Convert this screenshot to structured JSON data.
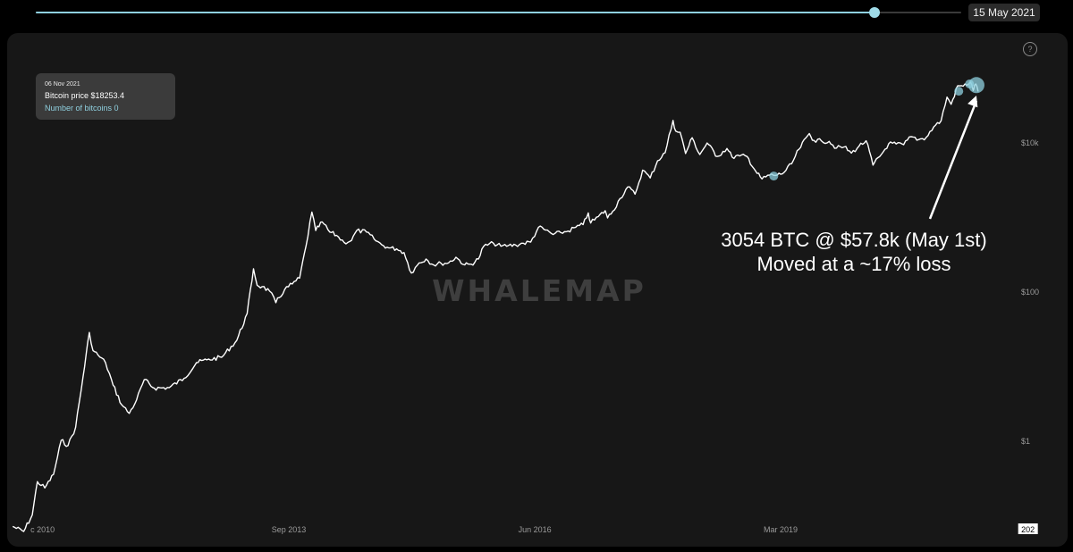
{
  "timeline": {
    "progress": 0.906,
    "selected_date": "15 May 2021"
  },
  "help_label": "?",
  "tooltip": {
    "date": "06 Nov 2021",
    "price_text": "Bitcoin price $18253.4",
    "count_text": "Number of bitcoins 0"
  },
  "colors": {
    "page_background": "#000000",
    "panel_background": "#171717",
    "price_line": "#ffffff",
    "accent": "#8fd0df",
    "watermark": "#3e3e3e",
    "tick_label": "#9a9a9a"
  },
  "chart_data": {
    "type": "line",
    "title": "",
    "xlabel": "",
    "ylabel": "",
    "y_scale": "log",
    "watermark": "WHALEMAP",
    "x_ticks": [
      {
        "label": "c 2010",
        "date": "2010-12-01"
      },
      {
        "label": "Sep 2013",
        "date": "2013-09-01"
      },
      {
        "label": "Jun 2016",
        "date": "2016-06-01"
      },
      {
        "label": "Mar 2019",
        "date": "2019-03-01"
      },
      {
        "label": "202",
        "date": "2021-12-01",
        "boxed": true
      }
    ],
    "y_ticks": [
      {
        "label": "$10k",
        "value": 10000
      },
      {
        "label": "$100",
        "value": 100
      },
      {
        "label": "$1",
        "value": 1
      }
    ],
    "series": [
      {
        "points": [
          [
            "2010-08-01",
            0.07
          ],
          [
            "2010-09-15",
            0.06
          ],
          [
            "2010-10-20",
            0.1
          ],
          [
            "2010-11-10",
            0.28
          ],
          [
            "2010-12-10",
            0.23
          ],
          [
            "2011-01-15",
            0.35
          ],
          [
            "2011-02-15",
            1.0
          ],
          [
            "2011-03-15",
            0.85
          ],
          [
            "2011-04-15",
            1.5
          ],
          [
            "2011-05-15",
            7
          ],
          [
            "2011-06-10",
            28
          ],
          [
            "2011-06-25",
            16
          ],
          [
            "2011-07-15",
            14
          ],
          [
            "2011-08-15",
            11
          ],
          [
            "2011-09-15",
            5.5
          ],
          [
            "2011-10-20",
            3.0
          ],
          [
            "2011-11-20",
            2.3
          ],
          [
            "2011-12-20",
            3.5
          ],
          [
            "2012-01-20",
            6.5
          ],
          [
            "2012-03-01",
            5
          ],
          [
            "2012-05-01",
            5.1
          ],
          [
            "2012-07-01",
            6.8
          ],
          [
            "2012-08-20",
            11
          ],
          [
            "2012-10-01",
            12
          ],
          [
            "2012-12-01",
            13
          ],
          [
            "2013-02-01",
            22
          ],
          [
            "2013-03-15",
            50
          ],
          [
            "2013-04-10",
            200
          ],
          [
            "2013-04-25",
            120
          ],
          [
            "2013-05-15",
            115
          ],
          [
            "2013-06-15",
            100
          ],
          [
            "2013-07-10",
            70
          ],
          [
            "2013-08-15",
            105
          ],
          [
            "2013-09-15",
            125
          ],
          [
            "2013-10-15",
            150
          ],
          [
            "2013-11-10",
            400
          ],
          [
            "2013-12-04",
            1150
          ],
          [
            "2013-12-20",
            650
          ],
          [
            "2014-01-15",
            850
          ],
          [
            "2014-02-15",
            620
          ],
          [
            "2014-03-15",
            560
          ],
          [
            "2014-04-15",
            450
          ],
          [
            "2014-05-15",
            480
          ],
          [
            "2014-06-05",
            650
          ],
          [
            "2014-07-15",
            620
          ],
          [
            "2014-08-15",
            500
          ],
          [
            "2014-09-15",
            420
          ],
          [
            "2014-10-15",
            380
          ],
          [
            "2014-11-15",
            370
          ],
          [
            "2014-12-15",
            330
          ],
          [
            "2015-01-14",
            175
          ],
          [
            "2015-02-15",
            240
          ],
          [
            "2015-03-15",
            270
          ],
          [
            "2015-04-15",
            225
          ],
          [
            "2015-05-15",
            237
          ],
          [
            "2015-06-15",
            240
          ],
          [
            "2015-07-15",
            285
          ],
          [
            "2015-08-20",
            225
          ],
          [
            "2015-09-15",
            230
          ],
          [
            "2015-10-15",
            270
          ],
          [
            "2015-11-05",
            400
          ],
          [
            "2015-12-15",
            440
          ],
          [
            "2016-01-15",
            400
          ],
          [
            "2016-02-15",
            410
          ],
          [
            "2016-03-15",
            415
          ],
          [
            "2016-04-15",
            440
          ],
          [
            "2016-05-15",
            455
          ],
          [
            "2016-06-16",
            720
          ],
          [
            "2016-07-15",
            660
          ],
          [
            "2016-08-15",
            575
          ],
          [
            "2016-09-15",
            610
          ],
          [
            "2016-10-15",
            640
          ],
          [
            "2016-11-15",
            720
          ],
          [
            "2016-12-15",
            780
          ],
          [
            "2017-01-05",
            1120
          ],
          [
            "2017-01-15",
            820
          ],
          [
            "2017-02-15",
            1000
          ],
          [
            "2017-03-15",
            1200
          ],
          [
            "2017-03-25",
            960
          ],
          [
            "2017-04-15",
            1180
          ],
          [
            "2017-05-15",
            1750
          ],
          [
            "2017-06-15",
            2500
          ],
          [
            "2017-07-15",
            2000
          ],
          [
            "2017-08-15",
            4200
          ],
          [
            "2017-09-15",
            3300
          ],
          [
            "2017-10-15",
            5600
          ],
          [
            "2017-11-15",
            7200
          ],
          [
            "2017-12-17",
            19500
          ],
          [
            "2017-12-28",
            14000
          ],
          [
            "2018-01-15",
            13500
          ],
          [
            "2018-02-06",
            7000
          ],
          [
            "2018-03-05",
            11400
          ],
          [
            "2018-04-05",
            6800
          ],
          [
            "2018-05-05",
            9700
          ],
          [
            "2018-06-15",
            6400
          ],
          [
            "2018-07-25",
            8200
          ],
          [
            "2018-08-15",
            6300
          ],
          [
            "2018-09-15",
            6500
          ],
          [
            "2018-10-15",
            6400
          ],
          [
            "2018-11-25",
            3800
          ],
          [
            "2018-12-15",
            3200
          ],
          [
            "2019-01-15",
            3600
          ],
          [
            "2019-02-15",
            3600
          ],
          [
            "2019-03-15",
            3900
          ],
          [
            "2019-04-15",
            5100
          ],
          [
            "2019-05-15",
            8000
          ],
          [
            "2019-06-26",
            13000
          ],
          [
            "2019-07-15",
            10500
          ],
          [
            "2019-08-15",
            10300
          ],
          [
            "2019-09-15",
            10200
          ],
          [
            "2019-10-15",
            8300
          ],
          [
            "2019-11-15",
            8600
          ],
          [
            "2019-12-15",
            7100
          ],
          [
            "2020-01-15",
            8800
          ],
          [
            "2020-02-13",
            10400
          ],
          [
            "2020-03-12",
            4900
          ],
          [
            "2020-04-15",
            6800
          ],
          [
            "2020-05-15",
            9500
          ],
          [
            "2020-06-15",
            9400
          ],
          [
            "2020-07-15",
            9200
          ],
          [
            "2020-08-15",
            11800
          ],
          [
            "2020-09-15",
            10800
          ],
          [
            "2020-10-15",
            11500
          ],
          [
            "2020-11-15",
            16000
          ],
          [
            "2020-12-15",
            19300
          ],
          [
            "2021-01-08",
            40000
          ],
          [
            "2021-01-25",
            32000
          ],
          [
            "2021-02-21",
            57000
          ],
          [
            "2021-03-15",
            56000
          ],
          [
            "2021-04-14",
            63500
          ],
          [
            "2021-04-25",
            49000
          ],
          [
            "2021-05-01",
            57800
          ],
          [
            "2021-05-10",
            56000
          ],
          [
            "2021-05-15",
            47500
          ]
        ]
      }
    ],
    "highlight_markers": [
      {
        "date": "2019-02-01",
        "value": 3500,
        "size": "small"
      },
      {
        "date": "2021-02-25",
        "value": 48000,
        "size": "small"
      },
      {
        "date": "2021-04-10",
        "value": 60000,
        "size": "small"
      },
      {
        "date": "2021-05-08",
        "value": 58000,
        "size": "large"
      }
    ],
    "annotation": {
      "line1": "3054 BTC @ $57.8k (May 1st)",
      "line2": "Moved at a ~17% loss",
      "arrow_target": {
        "date": "2021-05-08",
        "value": 42000
      }
    }
  }
}
